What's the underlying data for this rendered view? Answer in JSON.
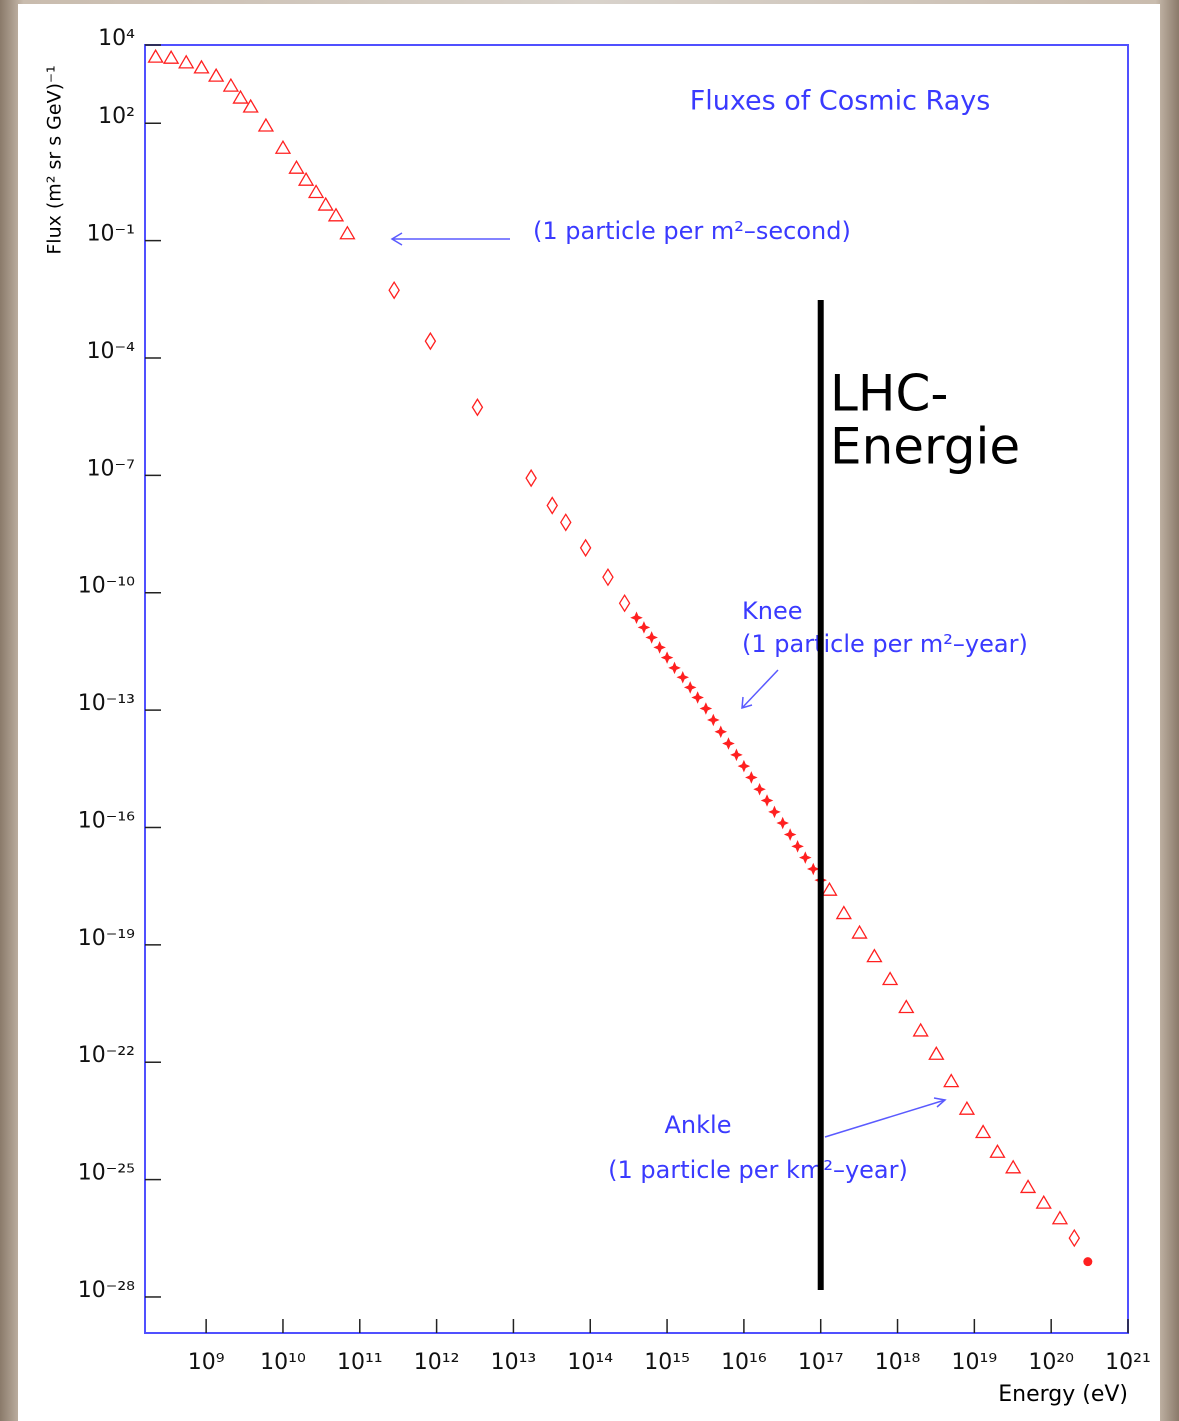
{
  "chart_data": {
    "type": "scatter",
    "title": "Fluxes of Cosmic Rays",
    "x_label": "Energy (eV)",
    "y_label": "Flux (m² sr s GeV)⁻¹",
    "xscale": "log",
    "yscale": "log",
    "xlim": [
      160000000.0,
      1e+21
    ],
    "ylim": [
      1.2e-29,
      10000.0
    ],
    "xticks": [
      {
        "value": 1000000000.0,
        "label": "10⁹"
      },
      {
        "value": 10000000000.0,
        "label": "10¹⁰"
      },
      {
        "value": 100000000000.0,
        "label": "10¹¹"
      },
      {
        "value": 1000000000000.0,
        "label": "10¹²"
      },
      {
        "value": 10000000000000.0,
        "label": "10¹³"
      },
      {
        "value": 100000000000000.0,
        "label": "10¹⁴"
      },
      {
        "value": 1000000000000000.0,
        "label": "10¹⁵"
      },
      {
        "value": 1e+16,
        "label": "10¹⁶"
      },
      {
        "value": 1e+17,
        "label": "10¹⁷"
      },
      {
        "value": 1e+18,
        "label": "10¹⁸"
      },
      {
        "value": 1e+19,
        "label": "10¹⁹"
      },
      {
        "value": 1e+20,
        "label": "10²⁰"
      },
      {
        "value": 1e+21,
        "label": "10²¹"
      }
    ],
    "yticks": [
      {
        "value": 10000.0,
        "label": "10⁴"
      },
      {
        "value": 100.0,
        "label": "10²"
      },
      {
        "value": 0.1,
        "label": "10⁻¹"
      },
      {
        "value": 0.0001,
        "label": "10⁻⁴"
      },
      {
        "value": 1e-07,
        "label": "10⁻⁷"
      },
      {
        "value": 1e-10,
        "label": "10⁻¹⁰"
      },
      {
        "value": 1e-13,
        "label": "10⁻¹³"
      },
      {
        "value": 1e-16,
        "label": "10⁻¹⁶"
      },
      {
        "value": 1e-19,
        "label": "10⁻¹⁹"
      },
      {
        "value": 1e-22,
        "label": "10⁻²²"
      },
      {
        "value": 1e-25,
        "label": "10⁻²⁵"
      },
      {
        "value": 1e-28,
        "label": "10⁻²⁸"
      }
    ],
    "axis_color": "#5050ff",
    "series": [
      {
        "marker": "triangle",
        "color": "#ff2020",
        "x": [
          220000000.0,
          350000000.0,
          550000000.0,
          870000000.0,
          1350000000.0,
          2100000000.0,
          2800000000.0,
          3800000000.0,
          6000000000.0,
          10000000000.0,
          15000000000.0,
          20000000000.0,
          27000000000.0,
          36000000000.0,
          49000000000.0,
          69000000000.0
        ],
        "values": [
          4900,
          4600,
          3500,
          2600,
          1600,
          890,
          440,
          260,
          85,
          23,
          7.1,
          3.5,
          1.7,
          0.81,
          0.43,
          0.15
        ]
      },
      {
        "marker": "diamond",
        "color": "#ff2020",
        "x": [
          280000000000.0,
          830000000000.0,
          3400000000000.0,
          17000000000000.0,
          32000000000000.0,
          48000000000000.0,
          87000000000000.0,
          170000000000000.0,
          280000000000000.0
        ],
        "values": [
          0.0054,
          0.00027,
          5.5e-06,
          8.5e-08,
          1.7e-08,
          6.3e-09,
          1.4e-09,
          2.5e-10,
          5.4e-11
        ]
      },
      {
        "marker": "star",
        "color": "#ff2020",
        "x": [
          400000000000000.0,
          500000000000000.0,
          630000000000000.0,
          800000000000000.0,
          1000000000000000.0,
          1250000000000000.0,
          1600000000000000.0,
          2000000000000000.0,
          2500000000000000.0,
          3200000000000000.0,
          4000000000000000.0,
          5000000000000000.0,
          6300000000000000.0,
          8000000000000000.0,
          1e+16,
          1.25e+16,
          1.6e+16,
          2e+16,
          2.5e+16,
          3.2e+16,
          4e+16,
          5e+16,
          6.3e+16,
          8e+16,
          1e+17
        ],
        "values": [
          2.3e-11,
          1.3e-11,
          7.2e-12,
          4e-12,
          2.2e-12,
          1.2e-12,
          6.9e-13,
          3.8e-13,
          2.1e-13,
          1.1e-13,
          5.6e-14,
          2.8e-14,
          1.4e-14,
          7.2e-15,
          3.7e-15,
          1.9e-15,
          9.5e-16,
          4.9e-16,
          2.5e-16,
          1.3e-16,
          6.6e-17,
          3.3e-17,
          1.7e-17,
          8.7e-18,
          4.5e-18
        ]
      },
      {
        "marker": "triangle",
        "color": "#ff2020",
        "x": [
          1.3e+17,
          2e+17,
          3.2e+17,
          5e+17,
          8e+17,
          1.3e+18,
          2e+18,
          3.2e+18,
          5e+18,
          8e+18,
          1.3e+19,
          2e+19,
          3.2e+19,
          5e+19,
          8e+19,
          1.3e+20
        ],
        "values": [
          2.5e-18,
          6.3e-19,
          2e-19,
          5e-20,
          1.3e-20,
          2.5e-21,
          6.3e-22,
          1.6e-22,
          3.2e-23,
          6.3e-24,
          1.6e-24,
          5e-25,
          2e-25,
          6.3e-26,
          2.5e-26,
          1e-26
        ]
      },
      {
        "marker": "diamond",
        "color": "#ff2020",
        "x": [
          2e+20
        ],
        "values": [
          3.2e-27
        ]
      },
      {
        "marker": "circle",
        "color": "#ff2020",
        "x": [
          3e+20
        ],
        "values": [
          8e-28
        ]
      }
    ],
    "annotations": {
      "second": "(1 particle per m²–second)",
      "knee": "Knee",
      "knee_note": "(1 particle per m²–year)",
      "ankle": "Ankle",
      "ankle_note": "(1 particle per km²–year)"
    },
    "lhc": {
      "energy": 1e+17,
      "label_1": "LHC-",
      "label_2": "Energie"
    }
  }
}
